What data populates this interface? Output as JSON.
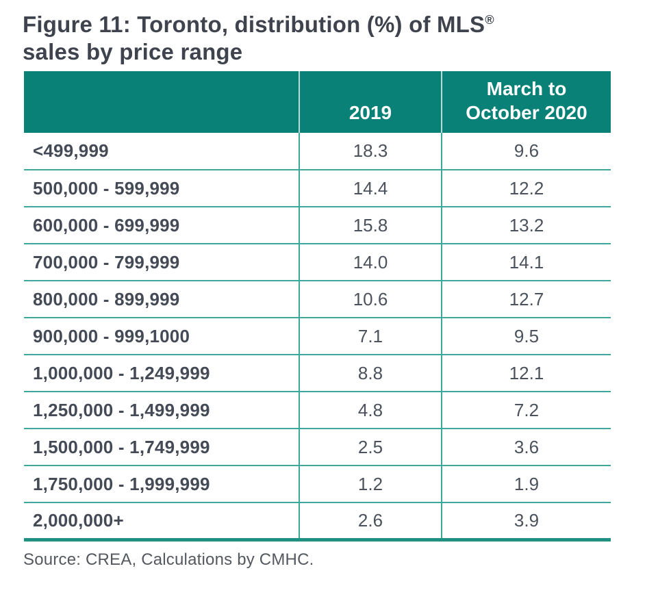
{
  "title": {
    "line1": "Figure 11: Toronto, distribution (%) of MLS",
    "sup": "®",
    "line2": "sales by price range"
  },
  "table": {
    "header": {
      "col_label": "",
      "col_2019": "2019",
      "col_2020": "March to October 2020"
    },
    "rows": [
      {
        "label": "<499,999",
        "y2019": "18.3",
        "y2020": "9.6"
      },
      {
        "label": "500,000 - 599,999",
        "y2019": "14.4",
        "y2020": "12.2"
      },
      {
        "label": "600,000 - 699,999",
        "y2019": "15.8",
        "y2020": "13.2"
      },
      {
        "label": "700,000 - 799,999",
        "y2019": "14.0",
        "y2020": "14.1"
      },
      {
        "label": "800,000 - 899,999",
        "y2019": "10.6",
        "y2020": "12.7"
      },
      {
        "label": "900,000 - 999,1000",
        "y2019": "7.1",
        "y2020": "9.5"
      },
      {
        "label": "1,000,000 - 1,249,999",
        "y2019": "8.8",
        "y2020": "12.1"
      },
      {
        "label": "1,250,000 - 1,499,999",
        "y2019": "4.8",
        "y2020": "7.2"
      },
      {
        "label": "1,500,000 - 1,749,999",
        "y2019": "2.5",
        "y2020": "3.6"
      },
      {
        "label": "1,750,000 - 1,999,999",
        "y2019": "1.2",
        "y2020": "1.9"
      },
      {
        "label": "2,000,000+",
        "y2019": "2.6",
        "y2020": "3.9"
      }
    ]
  },
  "source": "Source: CREA, Calculations by CMHC.",
  "colors": {
    "header_bg": "#0a8177",
    "header_divider": "#b9dbd7",
    "gridline": "#3ca89b",
    "table_bottom_border": "#1f9082",
    "title_text": "#3e434d",
    "label_text": "#454b56",
    "value_text": "#4b525c",
    "source_text": "#54585f"
  },
  "chart_data": {
    "type": "table",
    "title": "Figure 11: Toronto, distribution (%) of MLS® sales by price range",
    "categories": [
      "<499,999",
      "500,000 - 599,999",
      "600,000 - 699,999",
      "700,000 - 799,999",
      "800,000 - 899,999",
      "900,000 - 999,1000",
      "1,000,000 - 1,249,999",
      "1,250,000 - 1,499,999",
      "1,500,000 - 1,749,999",
      "1,750,000 - 1,999,999",
      "2,000,000+"
    ],
    "series": [
      {
        "name": "2019",
        "values": [
          18.3,
          14.4,
          15.8,
          14.0,
          10.6,
          7.1,
          8.8,
          4.8,
          2.5,
          1.2,
          2.6
        ]
      },
      {
        "name": "March to October 2020",
        "values": [
          9.6,
          12.2,
          13.2,
          14.1,
          12.7,
          9.5,
          12.1,
          7.2,
          3.6,
          1.9,
          3.9
        ]
      }
    ],
    "unit": "percent",
    "source": "Source: CREA, Calculations by CMHC."
  }
}
